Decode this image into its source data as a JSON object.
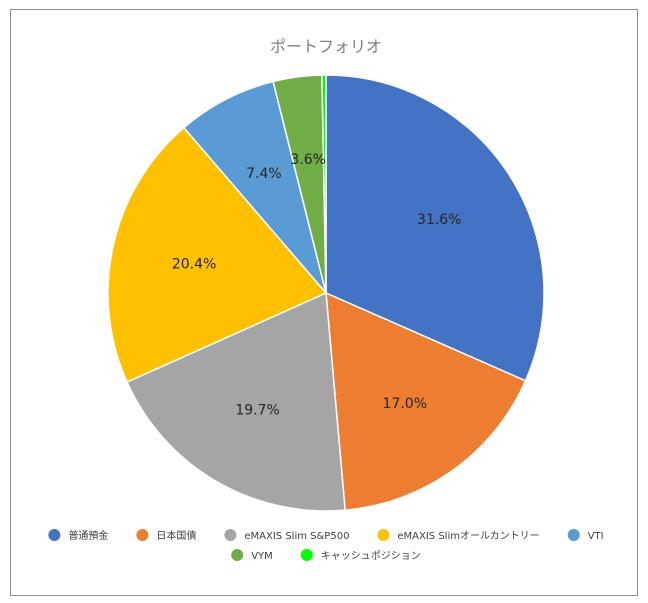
{
  "chart_data": {
    "type": "pie",
    "title": "ポートフォリオ",
    "slices": [
      {
        "label": "普通預金",
        "value": 31.6,
        "display": "31.6%",
        "color": "#4472C4"
      },
      {
        "label": "日本国債",
        "value": 17.0,
        "display": "17.0%",
        "color": "#ED7D31"
      },
      {
        "label": "eMAXIS Slim S&P500",
        "value": 19.7,
        "display": "19.7%",
        "color": "#A5A5A5"
      },
      {
        "label": "eMAXIS Slimオールカントリー",
        "value": 20.4,
        "display": "20.4%",
        "color": "#FFC000"
      },
      {
        "label": "VTI",
        "value": 7.4,
        "display": "7.4%",
        "color": "#5B9BD5"
      },
      {
        "label": "VYM",
        "value": 3.6,
        "display": "3.6%",
        "color": "#70AD47"
      },
      {
        "label": "キャッシュポジション",
        "value": 0.3,
        "display": "",
        "color": "#00FF00"
      }
    ],
    "legend_position": "bottom"
  }
}
